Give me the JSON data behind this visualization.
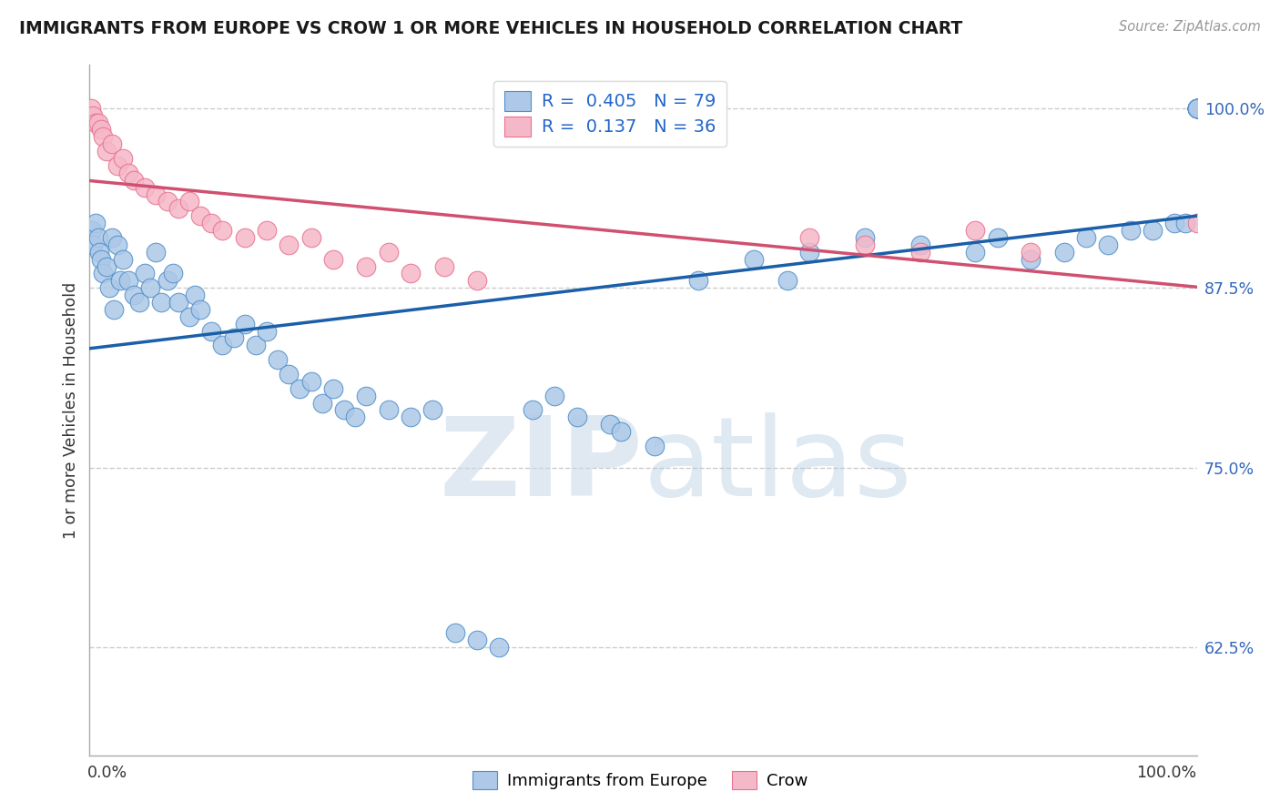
{
  "title": "IMMIGRANTS FROM EUROPE VS CROW 1 OR MORE VEHICLES IN HOUSEHOLD CORRELATION CHART",
  "source": "Source: ZipAtlas.com",
  "ylabel": "1 or more Vehicles in Household",
  "legend_blue_label": "Immigrants from Europe",
  "legend_pink_label": "Crow",
  "R_blue": 0.405,
  "N_blue": 79,
  "R_pink": 0.137,
  "N_pink": 36,
  "blue_fill": "#adc8e8",
  "pink_fill": "#f5b8c8",
  "blue_edge": "#5090c8",
  "pink_edge": "#e87090",
  "blue_line_color": "#1a5fa8",
  "pink_line_color": "#d05070",
  "right_yticks": [
    62.5,
    75.0,
    87.5,
    100.0
  ],
  "watermark_zip": "ZIP",
  "watermark_atlas": "atlas",
  "background_color": "#ffffff",
  "grid_color": "#cccccc",
  "title_color": "#1a1a1a",
  "xlim": [
    0,
    100
  ],
  "ylim": [
    55,
    103
  ],
  "blue_x": [
    0.2,
    0.3,
    0.5,
    0.8,
    0.9,
    1.0,
    1.2,
    1.5,
    1.8,
    2.0,
    2.2,
    2.5,
    2.8,
    3.0,
    3.5,
    4.0,
    4.5,
    5.0,
    5.5,
    6.0,
    6.5,
    7.0,
    7.5,
    8.0,
    9.0,
    9.5,
    10.0,
    11.0,
    12.0,
    13.0,
    14.0,
    15.0,
    16.0,
    17.0,
    18.0,
    19.0,
    20.0,
    21.0,
    22.0,
    23.0,
    24.0,
    25.0,
    27.0,
    29.0,
    31.0,
    33.0,
    35.0,
    37.0,
    40.0,
    42.0,
    44.0,
    47.0,
    48.0,
    51.0,
    55.0,
    60.0,
    63.0,
    65.0,
    70.0,
    75.0,
    80.0,
    82.0,
    85.0,
    88.0,
    90.0,
    92.0,
    94.0,
    96.0,
    98.0,
    99.0,
    100.0,
    100.0,
    100.0,
    100.0,
    100.0,
    100.0,
    100.0,
    100.0,
    100.0
  ],
  "blue_y": [
    91.5,
    90.5,
    92.0,
    91.0,
    90.0,
    89.5,
    88.5,
    89.0,
    87.5,
    91.0,
    86.0,
    90.5,
    88.0,
    89.5,
    88.0,
    87.0,
    86.5,
    88.5,
    87.5,
    90.0,
    86.5,
    88.0,
    88.5,
    86.5,
    85.5,
    87.0,
    86.0,
    84.5,
    83.5,
    84.0,
    85.0,
    83.5,
    84.5,
    82.5,
    81.5,
    80.5,
    81.0,
    79.5,
    80.5,
    79.0,
    78.5,
    80.0,
    79.0,
    78.5,
    79.0,
    63.5,
    63.0,
    62.5,
    79.0,
    80.0,
    78.5,
    78.0,
    77.5,
    76.5,
    88.0,
    89.5,
    88.0,
    90.0,
    91.0,
    90.5,
    90.0,
    91.0,
    89.5,
    90.0,
    91.0,
    90.5,
    91.5,
    91.5,
    92.0,
    92.0,
    100.0,
    100.0,
    100.0,
    100.0,
    100.0,
    100.0,
    100.0,
    100.0,
    100.0
  ],
  "pink_x": [
    0.1,
    0.3,
    0.5,
    0.8,
    1.0,
    1.2,
    1.5,
    2.0,
    2.5,
    3.0,
    3.5,
    4.0,
    5.0,
    6.0,
    7.0,
    8.0,
    9.0,
    10.0,
    11.0,
    12.0,
    14.0,
    16.0,
    18.0,
    20.0,
    22.0,
    25.0,
    27.0,
    29.0,
    32.0,
    35.0,
    65.0,
    70.0,
    75.0,
    80.0,
    85.0,
    100.0
  ],
  "pink_y": [
    100.0,
    99.5,
    99.0,
    99.0,
    98.5,
    98.0,
    97.0,
    97.5,
    96.0,
    96.5,
    95.5,
    95.0,
    94.5,
    94.0,
    93.5,
    93.0,
    93.5,
    92.5,
    92.0,
    91.5,
    91.0,
    91.5,
    90.5,
    91.0,
    89.5,
    89.0,
    90.0,
    88.5,
    89.0,
    88.0,
    91.0,
    90.5,
    90.0,
    91.5,
    90.0,
    92.0
  ]
}
